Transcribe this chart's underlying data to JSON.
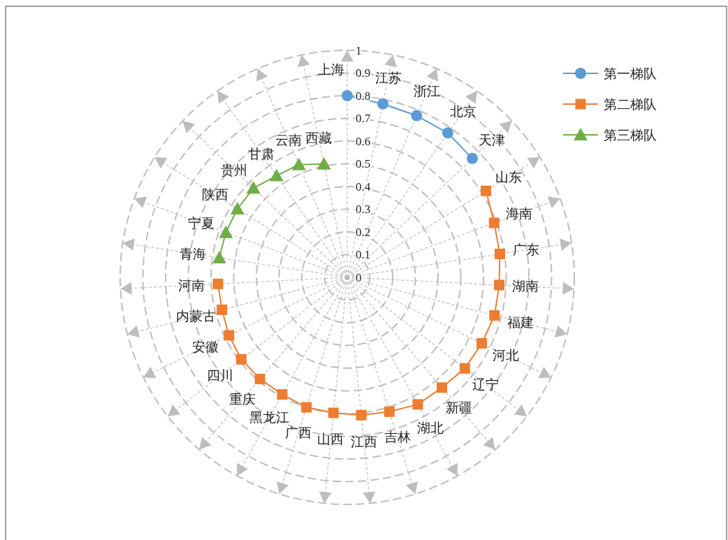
{
  "chart_data": {
    "type": "radar",
    "categories": [
      "上海",
      "江苏",
      "浙江",
      "北京",
      "天津",
      "山东",
      "海南",
      "广东",
      "湖南",
      "福建",
      "河北",
      "辽宁",
      "新疆",
      "湖北",
      "吉林",
      "江西",
      "山西",
      "广西",
      "黑龙江",
      "重庆",
      "四川",
      "安徽",
      "内蒙古",
      "河南",
      "青海",
      "宁夏",
      "陕西",
      "贵州",
      "甘肃",
      "云南",
      "西藏"
    ],
    "series": [
      {
        "name": "第一梯队",
        "color": "#5b9bd5",
        "marker": "circle",
        "values": [
          0.8,
          0.78,
          0.775,
          0.775,
          0.76,
          null,
          null,
          null,
          null,
          null,
          null,
          null,
          null,
          null,
          null,
          null,
          null,
          null,
          null,
          null,
          null,
          null,
          null,
          null,
          null,
          null,
          null,
          null,
          null,
          null,
          null
        ]
      },
      {
        "name": "第二梯队",
        "color": "#ed7d31",
        "marker": "square",
        "values": [
          null,
          null,
          null,
          null,
          null,
          0.72,
          0.69,
          0.68,
          0.67,
          0.67,
          0.66,
          0.655,
          0.64,
          0.64,
          0.62,
          0.61,
          0.6,
          0.6,
          0.59,
          0.59,
          0.59,
          0.58,
          0.57,
          0.57,
          null,
          null,
          null,
          null,
          null,
          null,
          null
        ]
      },
      {
        "name": "第三梯队",
        "color": "#70ad47",
        "marker": "triangle",
        "values": [
          null,
          null,
          null,
          null,
          null,
          null,
          null,
          null,
          null,
          null,
          null,
          null,
          null,
          null,
          null,
          null,
          null,
          null,
          null,
          null,
          null,
          null,
          null,
          null,
          0.57,
          0.57,
          0.57,
          0.57,
          0.545,
          0.54,
          0.51
        ]
      }
    ],
    "ylim": [
      0,
      1
    ],
    "yticks": [
      0,
      0.1,
      0.2,
      0.3,
      0.4,
      0.5,
      0.6,
      0.7,
      0.8,
      0.9,
      1
    ],
    "grid": true,
    "legend": "top right"
  }
}
